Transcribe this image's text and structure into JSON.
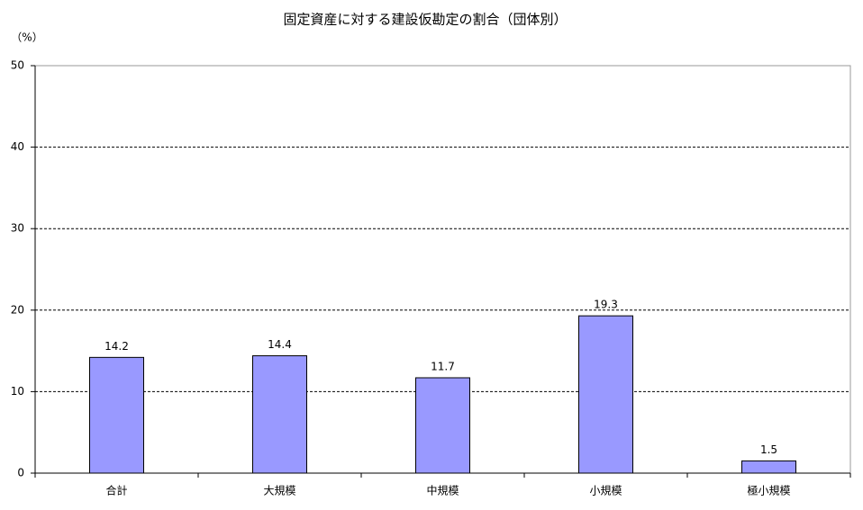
{
  "chart_data": {
    "type": "bar",
    "title": "固定資産に対する建設仮勘定の割合（団体別）",
    "y_axis_label": "（%）",
    "categories": [
      "合計",
      "大規模",
      "中規模",
      "小規模",
      "極小規模"
    ],
    "values": [
      14.2,
      14.4,
      11.7,
      19.3,
      1.5
    ],
    "color": "#9999ff",
    "ylim": [
      0,
      50
    ],
    "yticks": [
      0,
      10,
      20,
      30,
      40,
      50
    ],
    "grid": true
  }
}
